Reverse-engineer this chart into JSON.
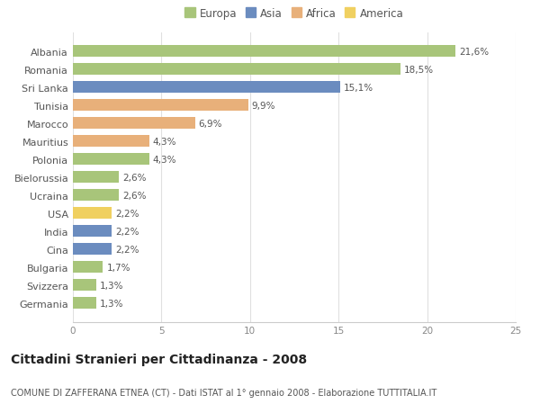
{
  "countries": [
    "Albania",
    "Romania",
    "Sri Lanka",
    "Tunisia",
    "Marocco",
    "Mauritius",
    "Polonia",
    "Bielorussia",
    "Ucraina",
    "USA",
    "India",
    "Cina",
    "Bulgaria",
    "Svizzera",
    "Germania"
  ],
  "values": [
    21.6,
    18.5,
    15.1,
    9.9,
    6.9,
    4.3,
    4.3,
    2.6,
    2.6,
    2.2,
    2.2,
    2.2,
    1.7,
    1.3,
    1.3
  ],
  "labels": [
    "21,6%",
    "18,5%",
    "15,1%",
    "9,9%",
    "6,9%",
    "4,3%",
    "4,3%",
    "2,6%",
    "2,6%",
    "2,2%",
    "2,2%",
    "2,2%",
    "1,7%",
    "1,3%",
    "1,3%"
  ],
  "continents": [
    "Europa",
    "Europa",
    "Asia",
    "Africa",
    "Africa",
    "Africa",
    "Europa",
    "Europa",
    "Europa",
    "America",
    "Asia",
    "Asia",
    "Europa",
    "Europa",
    "Europa"
  ],
  "colors": {
    "Europa": "#a8c57a",
    "Asia": "#6b8cbf",
    "Africa": "#e8b07a",
    "America": "#f0d060"
  },
  "xlim": [
    0,
    25
  ],
  "xticks": [
    0,
    5,
    10,
    15,
    20,
    25
  ],
  "title": "Cittadini Stranieri per Cittadinanza - 2008",
  "subtitle": "COMUNE DI ZAFFERANA ETNEA (CT) - Dati ISTAT al 1° gennaio 2008 - Elaborazione TUTTITALIA.IT",
  "background_color": "#ffffff",
  "grid_color": "#e0e0e0",
  "bar_height": 0.65,
  "label_fontsize": 7.5,
  "tick_fontsize": 7.5,
  "ytick_fontsize": 8,
  "title_fontsize": 10,
  "subtitle_fontsize": 7,
  "legend_fontsize": 8.5
}
